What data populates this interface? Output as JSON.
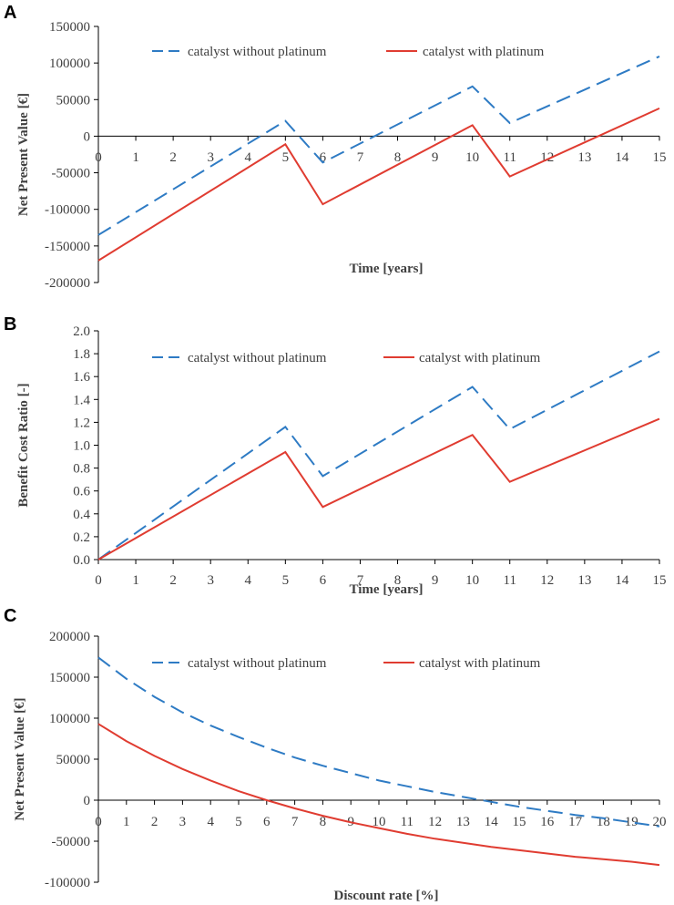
{
  "colors": {
    "without_platinum": "#2E7BC4",
    "with_platinum": "#E03C31",
    "axis": "#000000",
    "text": "#404040"
  },
  "chart_data": [
    {
      "panel": "A",
      "type": "line",
      "xlabel": "Time [years]",
      "ylabel": "Net Present Value [€]",
      "xlim": [
        0,
        15
      ],
      "ylim": [
        -200000,
        150000
      ],
      "x_ticks": [
        "0",
        "1",
        "2",
        "3",
        "4",
        "5",
        "6",
        "7",
        "8",
        "9",
        "10",
        "11",
        "12",
        "13",
        "14",
        "15"
      ],
      "y_ticks": [
        "150000",
        "100000",
        "50000",
        "0",
        "-50000",
        "-100000",
        "-150000",
        "-200000"
      ],
      "legend_position": "top",
      "series": [
        {
          "name": "catalyst without platinum",
          "style": "dashed",
          "color": "#2E7BC4",
          "x": [
            0,
            5,
            6,
            10,
            11,
            15
          ],
          "y": [
            -135000,
            21000,
            -36000,
            68000,
            18000,
            109000
          ]
        },
        {
          "name": "catalyst with platinum",
          "style": "solid",
          "color": "#E03C31",
          "x": [
            0,
            5,
            6,
            10,
            11,
            15
          ],
          "y": [
            -170000,
            -11000,
            -93000,
            15000,
            -55000,
            38000
          ]
        }
      ]
    },
    {
      "panel": "B",
      "type": "line",
      "xlabel": "Time [years]",
      "ylabel": "Benefit Cost Ratio [-]",
      "xlim": [
        0,
        15
      ],
      "ylim": [
        0,
        2
      ],
      "x_ticks": [
        "0",
        "1",
        "2",
        "3",
        "4",
        "5",
        "6",
        "7",
        "8",
        "9",
        "10",
        "11",
        "12",
        "13",
        "14",
        "15"
      ],
      "y_ticks": [
        "2.0",
        "1.8",
        "1.6",
        "1.4",
        "1.2",
        "1.0",
        "0.8",
        "0.6",
        "0.4",
        "0.2",
        "0.0"
      ],
      "legend_position": "top",
      "series": [
        {
          "name": "catalyst without platinum",
          "style": "dashed",
          "color": "#2E7BC4",
          "x": [
            0,
            5,
            6,
            10,
            11,
            15
          ],
          "y": [
            0.0,
            1.16,
            0.73,
            1.51,
            1.14,
            1.82
          ]
        },
        {
          "name": "catalyst with platinum",
          "style": "solid",
          "color": "#E03C31",
          "x": [
            0,
            5,
            6,
            10,
            11,
            15
          ],
          "y": [
            0.0,
            0.94,
            0.46,
            1.09,
            0.68,
            1.23
          ]
        }
      ]
    },
    {
      "panel": "C",
      "type": "line",
      "xlabel": "Discount rate [%]",
      "ylabel": "Net Present Value [€]",
      "xlim": [
        0,
        20
      ],
      "ylim": [
        -100000,
        200000
      ],
      "x_ticks": [
        "0",
        "1",
        "2",
        "3",
        "4",
        "5",
        "6",
        "7",
        "8",
        "9",
        "10",
        "11",
        "12",
        "13",
        "14",
        "15",
        "16",
        "17",
        "18",
        "19",
        "20"
      ],
      "y_ticks": [
        "200000",
        "150000",
        "100000",
        "50000",
        "0",
        "-50000",
        "-100000"
      ],
      "legend_position": "top",
      "series": [
        {
          "name": "catalyst without platinum",
          "style": "dashed",
          "color": "#2E7BC4",
          "x": [
            0,
            1,
            2,
            3,
            4,
            5,
            6,
            7,
            8,
            9,
            10,
            11,
            12,
            13,
            14,
            15,
            16,
            17,
            18,
            19,
            20
          ],
          "y": [
            174000,
            148000,
            126000,
            107000,
            91000,
            77000,
            64000,
            52000,
            42000,
            33000,
            24000,
            17000,
            10000,
            4000,
            -2000,
            -8000,
            -13000,
            -18000,
            -22000,
            -27000,
            -32000
          ]
        },
        {
          "name": "catalyst with platinum",
          "style": "solid",
          "color": "#E03C31",
          "x": [
            0,
            1,
            2,
            3,
            4,
            5,
            6,
            7,
            8,
            9,
            10,
            11,
            12,
            13,
            14,
            15,
            16,
            17,
            18,
            19,
            20
          ],
          "y": [
            93000,
            72000,
            54000,
            38000,
            24000,
            11000,
            0,
            -10000,
            -19000,
            -27000,
            -34000,
            -41000,
            -47000,
            -52000,
            -57000,
            -61000,
            -65000,
            -69000,
            -72000,
            -75000,
            -79000
          ]
        }
      ]
    }
  ]
}
